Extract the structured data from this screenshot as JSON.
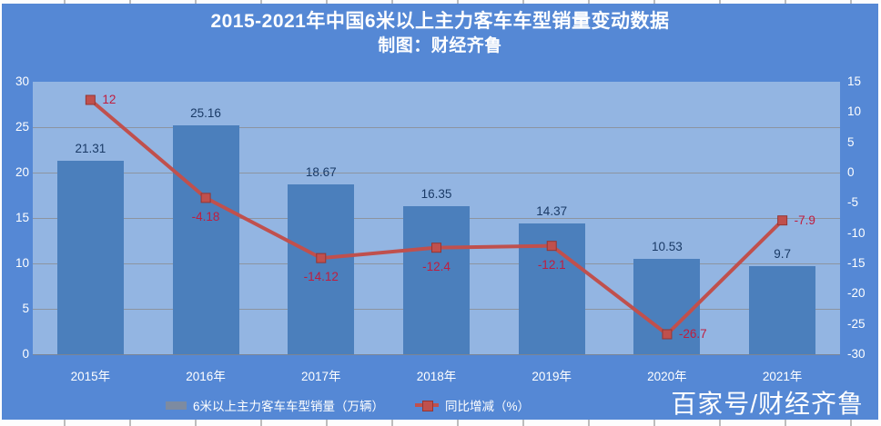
{
  "header": {
    "title": "2015-2021年中国6米以上主力客车车型销量变动数据",
    "subtitle": "制图：财经齐鲁"
  },
  "watermark": "百家号/财经齐鲁",
  "colors": {
    "chart_bg": "#5588d5",
    "plot_bg": "#93b5e2",
    "bar_fill": "#4b7fbc",
    "line_color": "#c0504d",
    "marker_border": "#943634",
    "bar_label_color": "#1a3a66",
    "line_label_color": "#c01d3e",
    "gridline_color": "#8c94a0",
    "axis_text_color": "#ffffff",
    "legend_bar_swatch": "#7d8ba1"
  },
  "chart_data": {
    "type": "bar",
    "subtype": "bar-and-line-combo",
    "title": "2015-2021年中国6米以上主力客车车型销量变动数据",
    "subtitle": "制图：财经齐鲁",
    "categories": [
      "2015年",
      "2016年",
      "2017年",
      "2018年",
      "2019年",
      "2020年",
      "2021年"
    ],
    "series": [
      {
        "name": "6米以上主力客车车型销量（万辆）",
        "type": "bar",
        "axis": "left",
        "values": [
          21.31,
          25.16,
          18.67,
          16.35,
          14.37,
          10.53,
          9.7
        ],
        "labels": [
          "21.31",
          "25.16",
          "18.67",
          "16.35",
          "14.37",
          "10.53",
          "9.7"
        ]
      },
      {
        "name": "同比增减（%）",
        "type": "line",
        "axis": "right",
        "values": [
          12,
          -4.18,
          -14.12,
          -12.4,
          -12.1,
          -26.7,
          -7.9
        ],
        "labels": [
          "12",
          "-4.18",
          "-14.12",
          "-12.4",
          "-12.1",
          "-26.7",
          "-7.9"
        ],
        "label_side": [
          "right",
          "below",
          "below",
          "below",
          "below",
          "right",
          "right"
        ]
      }
    ],
    "left_axis": {
      "min": 0,
      "max": 30,
      "step": 5,
      "ticks": [
        "30",
        "25",
        "20",
        "15",
        "10",
        "5",
        "0"
      ]
    },
    "right_axis": {
      "min": -30,
      "max": 15,
      "step": 5,
      "ticks": [
        "15",
        "10",
        "5",
        "0",
        "-5",
        "-10",
        "-15",
        "-20",
        "-25",
        "-30"
      ]
    },
    "grid": "horizontal",
    "legend_position": "bottom"
  }
}
